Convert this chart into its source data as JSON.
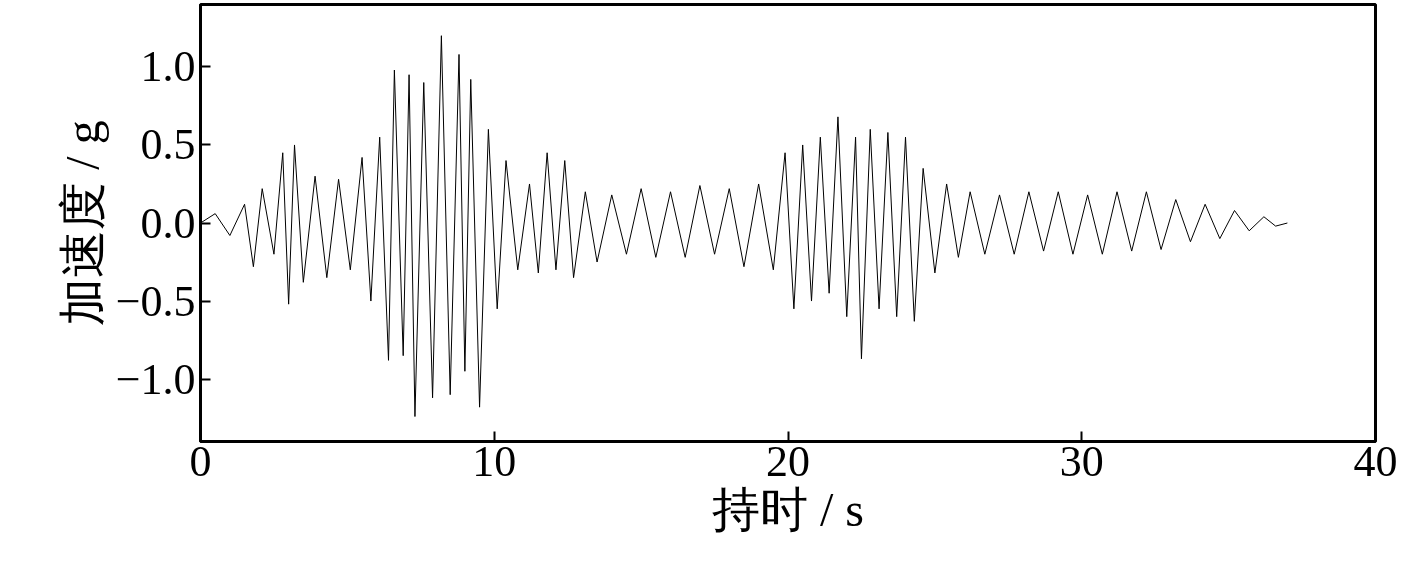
{
  "chart_data": {
    "type": "line",
    "xlabel": "持时 / s",
    "ylabel": "加速度 / g",
    "xlim": [
      0,
      40
    ],
    "ylim": [
      -1.4,
      1.4
    ],
    "xticks": [
      0,
      10,
      20,
      30,
      40
    ],
    "yticks": [
      {
        "value": -1,
        "label": "−1.0"
      },
      {
        "value": -0.5,
        "label": "−0.5"
      },
      {
        "value": 0,
        "label": "0.0"
      },
      {
        "value": 0.5,
        "label": "0.5"
      },
      {
        "value": 1,
        "label": "1.0"
      }
    ],
    "x": [
      0,
      0.5,
      1.0,
      1.5,
      1.8,
      2.1,
      2.5,
      2.8,
      3.0,
      3.2,
      3.5,
      3.9,
      4.3,
      4.7,
      5.1,
      5.5,
      5.8,
      6.1,
      6.4,
      6.6,
      6.9,
      7.1,
      7.3,
      7.6,
      7.9,
      8.2,
      8.5,
      8.8,
      9.0,
      9.2,
      9.5,
      9.8,
      10.1,
      10.4,
      10.8,
      11.2,
      11.5,
      11.8,
      12.1,
      12.4,
      12.7,
      13.1,
      13.5,
      14.0,
      14.5,
      15.0,
      15.5,
      16.0,
      16.5,
      17.0,
      17.5,
      18.0,
      18.5,
      19.0,
      19.5,
      19.9,
      20.2,
      20.5,
      20.8,
      21.1,
      21.4,
      21.7,
      22.0,
      22.3,
      22.5,
      22.8,
      23.1,
      23.4,
      23.7,
      24.0,
      24.3,
      24.6,
      25.0,
      25.4,
      25.8,
      26.2,
      26.7,
      27.2,
      27.7,
      28.2,
      28.7,
      29.2,
      29.7,
      30.2,
      30.7,
      31.2,
      31.7,
      32.2,
      32.7,
      33.2,
      33.7,
      34.2,
      34.7,
      35.2,
      35.7,
      36.2,
      36.6,
      37.0
    ],
    "series": [
      {
        "color": "#000000",
        "values": [
          0,
          0.06,
          -0.08,
          0.12,
          -0.28,
          0.22,
          -0.2,
          0.45,
          -0.52,
          0.5,
          -0.38,
          0.3,
          -0.35,
          0.28,
          -0.3,
          0.42,
          -0.5,
          0.55,
          -0.88,
          0.98,
          -0.85,
          0.95,
          -1.24,
          0.9,
          -1.12,
          1.2,
          -1.1,
          1.08,
          -0.95,
          0.92,
          -1.18,
          0.6,
          -0.55,
          0.4,
          -0.3,
          0.25,
          -0.32,
          0.45,
          -0.3,
          0.4,
          -0.35,
          0.2,
          -0.25,
          0.18,
          -0.2,
          0.22,
          -0.22,
          0.2,
          -0.22,
          0.24,
          -0.2,
          0.22,
          -0.28,
          0.25,
          -0.3,
          0.45,
          -0.55,
          0.5,
          -0.5,
          0.55,
          -0.45,
          0.68,
          -0.6,
          0.55,
          -0.87,
          0.6,
          -0.55,
          0.58,
          -0.6,
          0.55,
          -0.63,
          0.35,
          -0.32,
          0.25,
          -0.22,
          0.2,
          -0.2,
          0.18,
          -0.2,
          0.2,
          -0.18,
          0.2,
          -0.2,
          0.18,
          -0.2,
          0.2,
          -0.18,
          0.2,
          -0.17,
          0.15,
          -0.12,
          0.12,
          -0.1,
          0.08,
          -0.05,
          0.04,
          -0.02,
          0
        ]
      }
    ]
  }
}
